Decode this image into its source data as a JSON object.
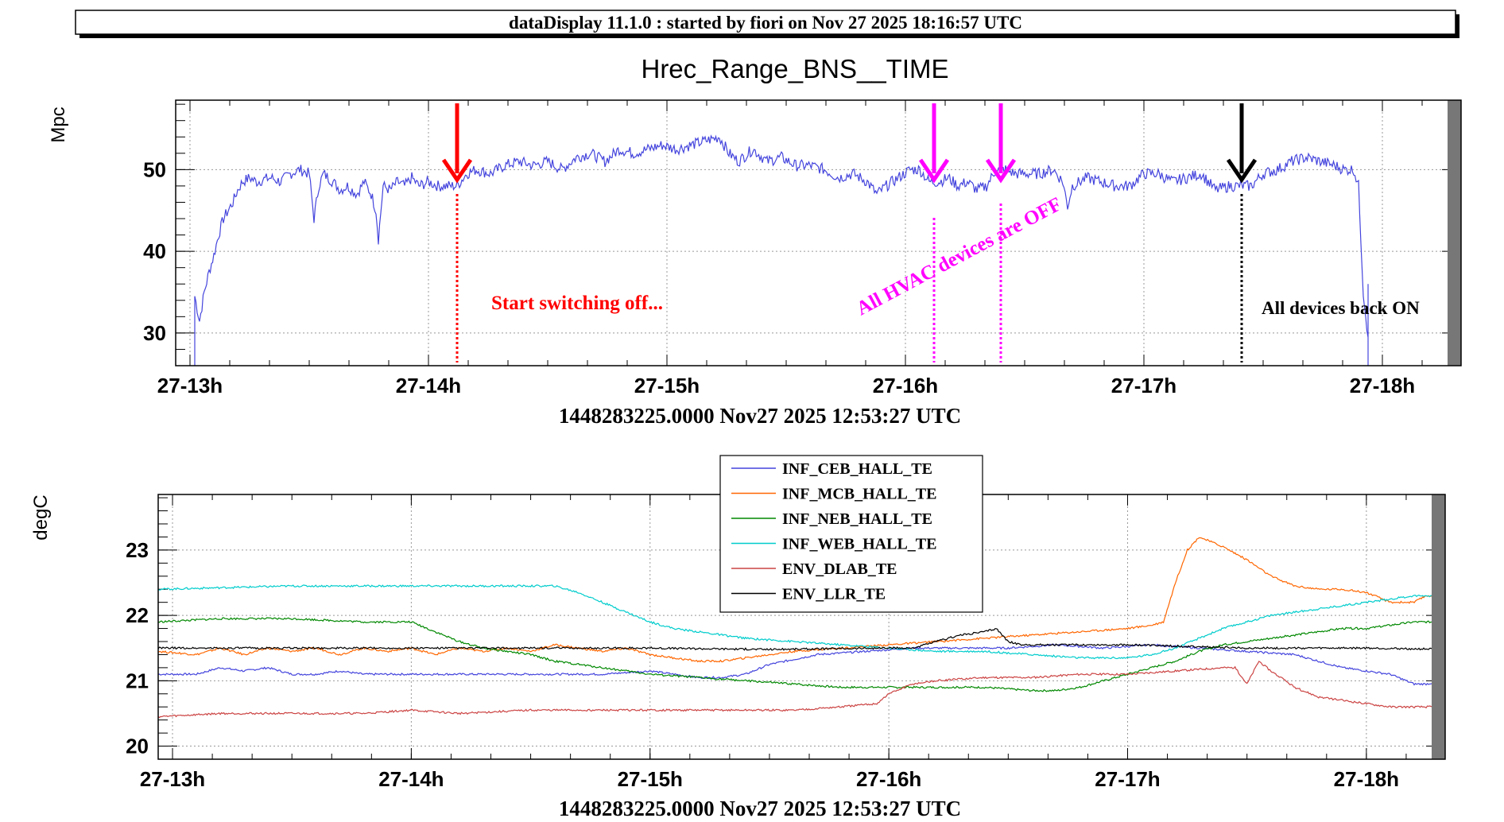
{
  "header": {
    "title": "dataDisplay 11.1.0 : started by fiori on Nov 27 2025 18:16:57 UTC"
  },
  "chart_data": [
    {
      "type": "line",
      "title": "Hrec_Range_BNS__TIME",
      "ylabel": "Mpc",
      "xlabel": "1448283225.0000 Nov27 2025 12:53:27 UTC",
      "xlim": [
        12.94,
        18.33
      ],
      "ylim": [
        26,
        58.5
      ],
      "x_ticks": [
        {
          "x": 13,
          "label": "27-13h"
        },
        {
          "x": 14,
          "label": "27-14h"
        },
        {
          "x": 15,
          "label": "27-15h"
        },
        {
          "x": 16,
          "label": "27-16h"
        },
        {
          "x": 17,
          "label": "27-17h"
        },
        {
          "x": 18,
          "label": "27-18h"
        }
      ],
      "y_ticks": [
        {
          "y": 30,
          "label": "30"
        },
        {
          "y": 40,
          "label": "40"
        },
        {
          "y": 50,
          "label": "50"
        }
      ],
      "grid": true,
      "series": [
        {
          "color": "#4444dd",
          "x": [
            13.02,
            13.04,
            13.06,
            13.08,
            13.1,
            13.12,
            13.14,
            13.16,
            13.18,
            13.2,
            13.22,
            13.25,
            13.28,
            13.31,
            13.34,
            13.38,
            13.42,
            13.46,
            13.5,
            13.52,
            13.54,
            13.56,
            13.58,
            13.6,
            13.63,
            13.66,
            13.7,
            13.73,
            13.76,
            13.78,
            13.79,
            13.81,
            13.84,
            13.87,
            13.9,
            13.93,
            13.96,
            14.0,
            14.04,
            14.08,
            14.12,
            14.16,
            14.2,
            14.26,
            14.32,
            14.38,
            14.44,
            14.5,
            14.56,
            14.62,
            14.68,
            14.74,
            14.8,
            14.86,
            14.92,
            14.98,
            15.04,
            15.1,
            15.16,
            15.22,
            15.26,
            15.3,
            15.36,
            15.42,
            15.48,
            15.54,
            15.6,
            15.66,
            15.72,
            15.78,
            15.84,
            15.88,
            15.92,
            15.97,
            16.02,
            16.06,
            16.1,
            16.14,
            16.18,
            16.22,
            16.26,
            16.3,
            16.34,
            16.38,
            16.42,
            16.46,
            16.5,
            16.56,
            16.62,
            16.66,
            16.68,
            16.7,
            16.76,
            16.82,
            16.88,
            16.94,
            17.0,
            17.06,
            17.12,
            17.18,
            17.24,
            17.3,
            17.36,
            17.4,
            17.45,
            17.5,
            17.56,
            17.62,
            17.68,
            17.74,
            17.8,
            17.84,
            17.88,
            17.9,
            17.92,
            17.94
          ],
          "y": [
            34.5,
            31.5,
            35,
            37.5,
            39.5,
            42,
            44,
            45,
            46,
            47.5,
            48.5,
            49,
            48.5,
            48.8,
            49,
            48.5,
            49.5,
            50,
            49.5,
            44,
            48,
            49.5,
            49,
            48.5,
            47.5,
            48,
            47,
            48.5,
            47,
            45,
            41.5,
            48,
            47.5,
            48.5,
            48,
            49,
            48,
            48.5,
            48,
            48,
            48,
            49.5,
            50,
            49.5,
            50.5,
            51,
            50.5,
            51,
            50,
            51.5,
            52,
            51,
            52.5,
            52,
            52.5,
            53,
            52.5,
            53,
            53.5,
            54,
            52,
            51,
            52.5,
            51,
            51.5,
            50.5,
            50.5,
            50,
            49,
            49.5,
            48.5,
            47,
            48,
            49,
            50,
            50,
            48.5,
            48.5,
            49,
            48,
            48.5,
            47.5,
            48,
            50,
            50,
            49.5,
            49.5,
            49.5,
            50,
            48.5,
            45.5,
            48,
            49,
            48.5,
            48,
            48,
            49.5,
            49.5,
            48.5,
            49,
            49.5,
            47.5,
            48,
            48,
            48,
            49.5,
            50,
            51,
            51.5,
            51,
            50.5,
            50,
            50,
            48,
            35,
            29.5
          ]
        }
      ],
      "annotations": [
        {
          "text": "Start switching off...",
          "color": "#ff0000",
          "x": 14.12
        },
        {
          "text": "All HVAC devices are OFF",
          "color": "#ff00ff",
          "x": [
            16.12,
            16.4
          ]
        },
        {
          "text": "All  devices back ON",
          "color": "#000000",
          "x": 17.41
        }
      ]
    },
    {
      "type": "line",
      "title": "",
      "ylabel": "degC",
      "xlabel": "1448283225.0000 Nov27 2025 12:53:27 UTC",
      "xlim": [
        12.94,
        18.33
      ],
      "ylim": [
        19.8,
        23.85
      ],
      "x_ticks": [
        {
          "x": 13,
          "label": "27-13h"
        },
        {
          "x": 14,
          "label": "27-14h"
        },
        {
          "x": 15,
          "label": "27-15h"
        },
        {
          "x": 16,
          "label": "27-16h"
        },
        {
          "x": 17,
          "label": "27-17h"
        },
        {
          "x": 18,
          "label": "27-18h"
        }
      ],
      "y_ticks": [
        {
          "y": 20,
          "label": "20"
        },
        {
          "y": 21,
          "label": "21"
        },
        {
          "y": 22,
          "label": "22"
        },
        {
          "y": 23,
          "label": "23"
        }
      ],
      "grid": true,
      "legend_position": "top-center",
      "series": [
        {
          "name": "INF_CEB_HALL_TE",
          "color": "#4444dd",
          "x": [
            12.94,
            13.1,
            13.2,
            13.3,
            13.4,
            13.5,
            13.6,
            13.7,
            13.8,
            13.9,
            14.0,
            14.2,
            14.4,
            14.6,
            14.8,
            15.0,
            15.1,
            15.2,
            15.3,
            15.4,
            15.5,
            15.7,
            15.9,
            16.1,
            16.3,
            16.5,
            16.7,
            16.9,
            17.1,
            17.3,
            17.5,
            17.7,
            17.9,
            18.0,
            18.1,
            18.2,
            18.25,
            18.33
          ],
          "y": [
            21.1,
            21.1,
            21.2,
            21.15,
            21.2,
            21.1,
            21.1,
            21.15,
            21.1,
            21.1,
            21.1,
            21.1,
            21.1,
            21.1,
            21.1,
            21.15,
            21.1,
            21.05,
            21.05,
            21.1,
            21.25,
            21.4,
            21.45,
            21.5,
            21.5,
            21.5,
            21.55,
            21.5,
            21.55,
            21.5,
            21.45,
            21.4,
            21.2,
            21.15,
            21.1,
            20.95,
            20.95,
            21.0
          ]
        },
        {
          "name": "INF_MCB_HALL_TE",
          "color": "#ff6600",
          "x": [
            12.94,
            13.1,
            13.2,
            13.3,
            13.4,
            13.5,
            13.6,
            13.7,
            13.8,
            13.9,
            14.0,
            14.1,
            14.2,
            14.3,
            14.4,
            14.5,
            14.6,
            14.7,
            14.8,
            14.9,
            15.0,
            15.1,
            15.2,
            15.3,
            15.4,
            15.6,
            15.8,
            16.0,
            16.2,
            16.4,
            16.6,
            16.8,
            17.0,
            17.1,
            17.15,
            17.2,
            17.25,
            17.3,
            17.4,
            17.5,
            17.6,
            17.7,
            17.8,
            17.9,
            18.0,
            18.1,
            18.2,
            18.25,
            18.33
          ],
          "y": [
            21.45,
            21.4,
            21.5,
            21.4,
            21.5,
            21.45,
            21.5,
            21.4,
            21.5,
            21.45,
            21.5,
            21.4,
            21.5,
            21.45,
            21.5,
            21.45,
            21.55,
            21.5,
            21.45,
            21.5,
            21.4,
            21.35,
            21.3,
            21.3,
            21.35,
            21.45,
            21.5,
            21.55,
            21.6,
            21.65,
            21.7,
            21.75,
            21.8,
            21.85,
            21.9,
            22.5,
            23.0,
            23.2,
            23.05,
            22.85,
            22.6,
            22.45,
            22.4,
            22.4,
            22.35,
            22.2,
            22.2,
            22.3,
            22.3
          ]
        },
        {
          "name": "INF_NEB_HALL_TE",
          "color": "#008800",
          "x": [
            12.94,
            13.2,
            13.5,
            13.8,
            14.0,
            14.1,
            14.2,
            14.3,
            14.4,
            14.5,
            14.6,
            14.7,
            14.8,
            14.9,
            15.0,
            15.2,
            15.4,
            15.6,
            15.8,
            16.0,
            16.2,
            16.4,
            16.6,
            16.7,
            16.8,
            16.9,
            17.0,
            17.1,
            17.2,
            17.3,
            17.4,
            17.5,
            17.6,
            17.7,
            17.8,
            17.9,
            18.0,
            18.1,
            18.2,
            18.33
          ],
          "y": [
            21.9,
            21.95,
            21.95,
            21.9,
            21.9,
            21.75,
            21.6,
            21.5,
            21.45,
            21.4,
            21.3,
            21.25,
            21.2,
            21.15,
            21.1,
            21.05,
            21.0,
            20.95,
            20.9,
            20.9,
            20.9,
            20.9,
            20.85,
            20.85,
            20.9,
            21.0,
            21.1,
            21.2,
            21.3,
            21.45,
            21.55,
            21.6,
            21.65,
            21.7,
            21.75,
            21.8,
            21.8,
            21.85,
            21.9,
            21.9
          ]
        },
        {
          "name": "INF_WEB_HALL_TE",
          "color": "#00cccc",
          "x": [
            12.94,
            13.5,
            14.0,
            14.4,
            14.6,
            14.7,
            14.8,
            14.9,
            15.0,
            15.1,
            15.2,
            15.3,
            15.4,
            15.6,
            15.8,
            16.0,
            16.2,
            16.4,
            16.6,
            16.8,
            17.0,
            17.1,
            17.2,
            17.3,
            17.4,
            17.5,
            17.6,
            17.7,
            17.8,
            17.9,
            18.0,
            18.1,
            18.2,
            18.33
          ],
          "y": [
            22.4,
            22.45,
            22.45,
            22.45,
            22.45,
            22.35,
            22.2,
            22.05,
            21.9,
            21.8,
            21.75,
            21.7,
            21.65,
            21.6,
            21.55,
            21.5,
            21.45,
            21.45,
            21.4,
            21.35,
            21.35,
            21.4,
            21.5,
            21.65,
            21.8,
            21.9,
            22.0,
            22.05,
            22.1,
            22.15,
            22.2,
            22.25,
            22.3,
            22.3
          ]
        },
        {
          "name": "ENV_DLAB_TE",
          "color": "#cc4444",
          "x": [
            12.94,
            13.2,
            13.5,
            13.8,
            14.0,
            14.2,
            14.5,
            14.8,
            15.0,
            15.2,
            15.4,
            15.6,
            15.8,
            15.95,
            16.0,
            16.1,
            16.2,
            16.4,
            16.6,
            16.8,
            17.0,
            17.2,
            17.4,
            17.45,
            17.5,
            17.55,
            17.6,
            17.7,
            17.8,
            17.9,
            18.0,
            18.1,
            18.2,
            18.33
          ],
          "y": [
            20.45,
            20.5,
            20.5,
            20.5,
            20.55,
            20.5,
            20.55,
            20.55,
            20.55,
            20.55,
            20.55,
            20.55,
            20.6,
            20.65,
            20.8,
            20.95,
            21.0,
            21.05,
            21.05,
            21.1,
            21.1,
            21.15,
            21.2,
            21.2,
            20.95,
            21.3,
            21.15,
            20.9,
            20.75,
            20.7,
            20.65,
            20.6,
            20.6,
            20.6
          ]
        },
        {
          "name": "ENV_LLR_TE",
          "color": "#000000",
          "x": [
            12.94,
            13.5,
            14.0,
            14.5,
            15.0,
            15.5,
            16.0,
            16.1,
            16.2,
            16.3,
            16.4,
            16.45,
            16.5,
            16.55,
            16.7,
            17.0,
            17.5,
            18.0,
            18.33
          ],
          "y": [
            21.5,
            21.5,
            21.5,
            21.5,
            21.5,
            21.48,
            21.5,
            21.5,
            21.6,
            21.7,
            21.75,
            21.8,
            21.6,
            21.55,
            21.55,
            21.55,
            21.5,
            21.5,
            21.48
          ]
        }
      ]
    }
  ]
}
